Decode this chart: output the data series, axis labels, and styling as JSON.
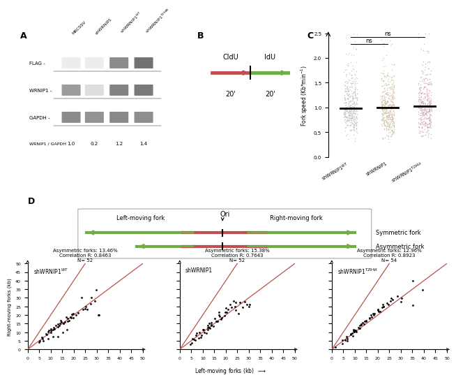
{
  "panel_A_col_labels": [
    "MRCSSV",
    "shWRNIP1",
    "shWRNIP1^WT",
    "shWRNIP1^T294A"
  ],
  "panel_A_row_labels": [
    "FLAG -",
    "WRNIP1 -",
    "GAPDH -"
  ],
  "panel_A_ratio_label": "WRNIP1 / GAPDH",
  "panel_A_ratios": [
    "1.0",
    "0.2",
    "1.2",
    "1.4"
  ],
  "panel_A_flag_intensities": [
    0.0,
    0.0,
    0.7,
    0.85
  ],
  "panel_A_wrnip1_intensities": [
    0.6,
    0.2,
    0.75,
    0.8
  ],
  "panel_A_gapdh_intensities": [
    0.7,
    0.65,
    0.72,
    0.68
  ],
  "panel_B_cldu": "CldU",
  "panel_B_idu": "IdU",
  "panel_B_time": "20'",
  "panel_C_ylabel": "Fork speed (Kb*min$^{-1}$)",
  "panel_C_ns": "ns",
  "panel_D_ori": "Ori",
  "panel_D_left": "Left-moving fork",
  "panel_D_right": "Right-moving fork",
  "panel_D_sym": "Symmetric fork",
  "panel_D_asym": "Asymmetric fork",
  "scatter1_label": "shWRNIP1$^{WT}$",
  "scatter1_asym": "Asymmetric forks: 13.46%",
  "scatter1_corr": "Correlation R: 0.8463",
  "scatter1_N": "N= 52",
  "scatter2_label": "shWRNIP1",
  "scatter2_asym": "Asymmetric forks: 15.38%",
  "scatter2_corr": "Correlation R: 0.7643",
  "scatter2_N": "N= 52",
  "scatter3_label": "shWRNIP1$^{T294A}$",
  "scatter3_asym": "Asymmetric forks: 12.96%",
  "scatter3_corr": "Correlation R: 0.8923",
  "scatter3_N": "N= 54",
  "xlabel_scatter": "Left-moving forks (kb)",
  "ylabel_scatter": "Right-moving forks (kb)",
  "bg_color": "#ffffff",
  "scatter_dot_color": "#000000",
  "line_color": "#c0504d",
  "fork_color_red": "#c0504d",
  "fork_color_green": "#70ad47",
  "stripplot_color1": "#bfbfbf",
  "stripplot_color2": "#c8b89a",
  "stripplot_color3": "#c9a0b0"
}
